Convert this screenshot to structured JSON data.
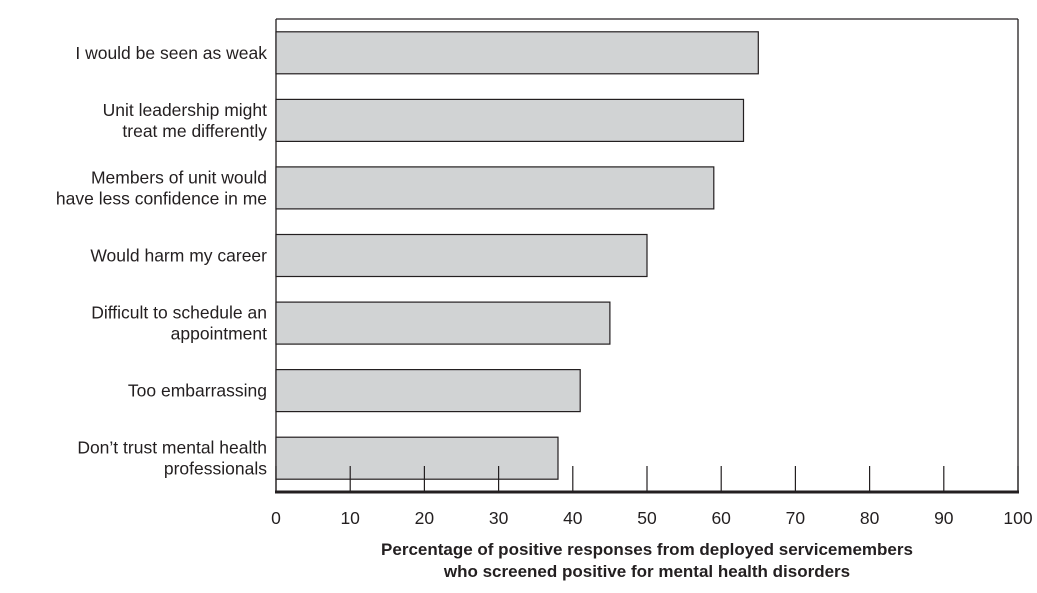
{
  "chart_data": {
    "type": "bar",
    "orientation": "horizontal",
    "categories": [
      [
        "I would be seen as weak"
      ],
      [
        "Unit leadership might",
        "treat me differently"
      ],
      [
        "Members of unit would",
        "have less confidence in me"
      ],
      [
        "Would harm my career"
      ],
      [
        "Difficult to schedule an",
        "appointment"
      ],
      [
        "Too embarrassing"
      ],
      [
        "Don’t trust mental health",
        "professionals"
      ]
    ],
    "values": [
      65,
      63,
      59,
      50,
      45,
      41,
      38
    ],
    "title": "",
    "xlabel": [
      "Percentage of positive responses from deployed servicemembers",
      "who screened positive for mental health disorders"
    ],
    "ylabel": "",
    "xlim": [
      0,
      100
    ],
    "xticks": [
      0,
      10,
      20,
      30,
      40,
      50,
      60,
      70,
      80,
      90,
      100
    ],
    "grid": false,
    "legend": "none",
    "colors": {
      "bar_fill": "#d1d3d4",
      "bar_stroke": "#231f20",
      "axis": "#231f20",
      "text": "#231f20"
    }
  }
}
